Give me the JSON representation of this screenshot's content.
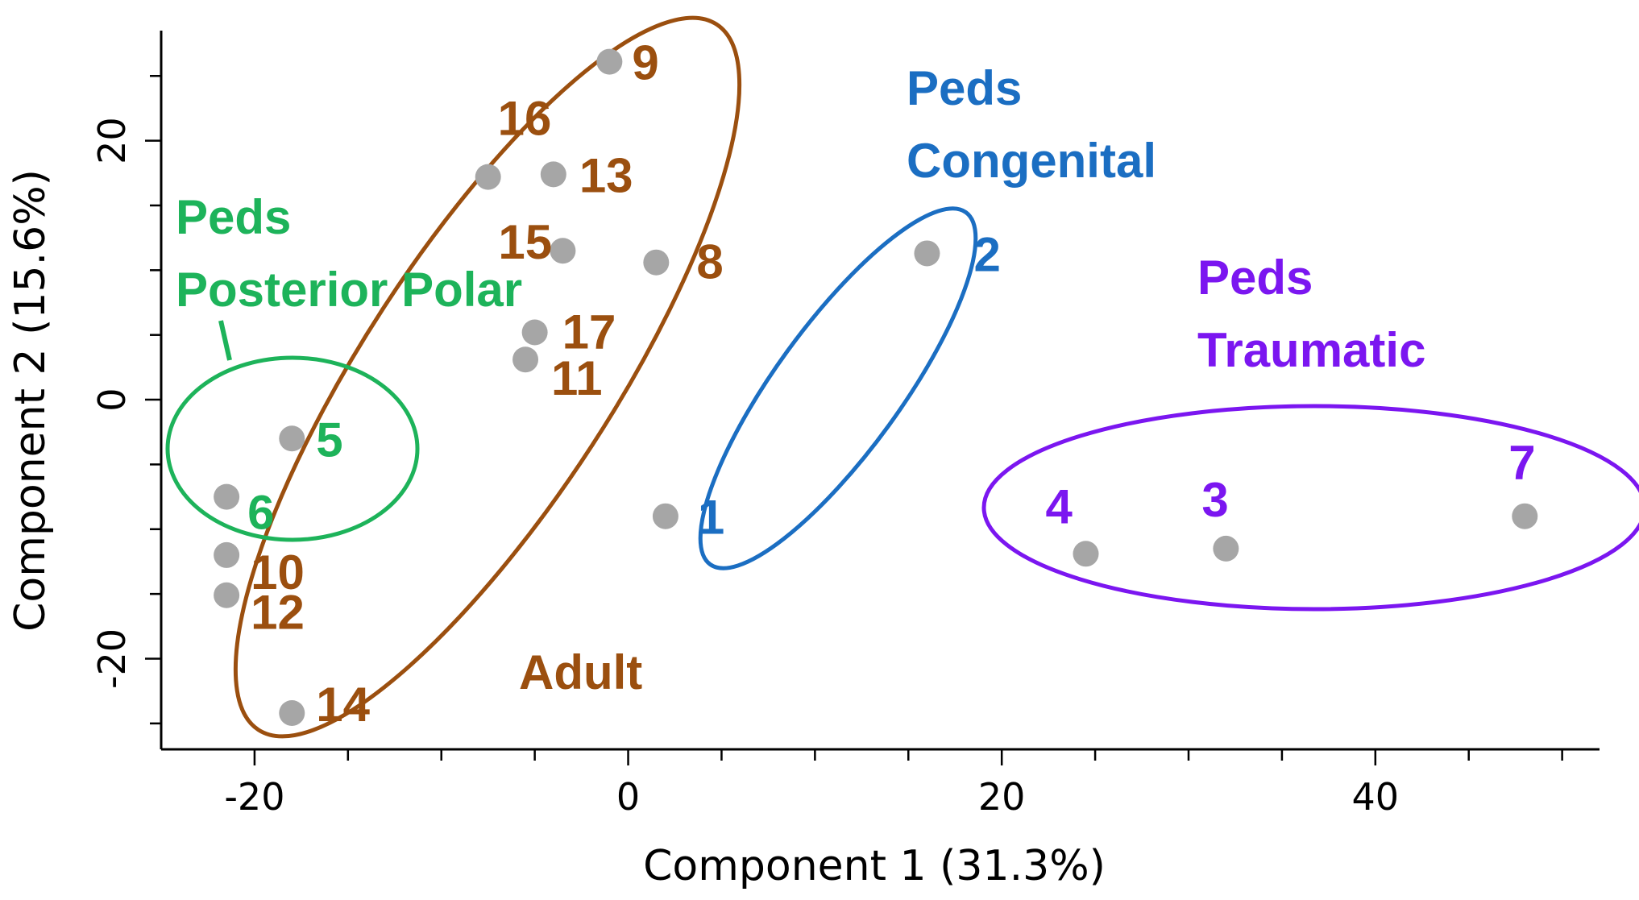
{
  "chart_data": {
    "type": "scatter",
    "xlabel": "Component 1 (31.3%)",
    "ylabel": "Component 2 (15.6%)",
    "xlim": [
      -25,
      52
    ],
    "ylim": [
      -27,
      28.5
    ],
    "xticks": [
      -20,
      0,
      20,
      40
    ],
    "yticks": [
      -20,
      0,
      20
    ],
    "grid": false,
    "points": [
      {
        "label": "1",
        "x": 2,
        "y": -9,
        "group": "Peds Congenital"
      },
      {
        "label": "2",
        "x": 16,
        "y": 11.3,
        "group": "Peds Congenital"
      },
      {
        "label": "3",
        "x": 32,
        "y": -11.5,
        "group": "Peds Traumatic"
      },
      {
        "label": "4",
        "x": 24.5,
        "y": -11.9,
        "group": "Peds Traumatic"
      },
      {
        "label": "5",
        "x": -18,
        "y": -3,
        "group": "Peds Posterior Polar"
      },
      {
        "label": "6",
        "x": -21.5,
        "y": -7.5,
        "group": "Peds Posterior Polar"
      },
      {
        "label": "7",
        "x": 48,
        "y": -9,
        "group": "Peds Traumatic"
      },
      {
        "label": "8",
        "x": 1.5,
        "y": 10.6,
        "group": "Adult"
      },
      {
        "label": "9",
        "x": -1,
        "y": 26.1,
        "group": "Adult"
      },
      {
        "label": "10",
        "x": -21.5,
        "y": -12,
        "group": "Adult"
      },
      {
        "label": "11",
        "x": -5.5,
        "y": 3.1,
        "group": "Adult"
      },
      {
        "label": "12",
        "x": -21.5,
        "y": -15.1,
        "group": "Adult"
      },
      {
        "label": "13",
        "x": -4,
        "y": 17.4,
        "group": "Adult"
      },
      {
        "label": "14",
        "x": -18,
        "y": -24.2,
        "group": "Adult"
      },
      {
        "label": "15",
        "x": -3.5,
        "y": 11.5,
        "group": "Adult"
      },
      {
        "label": "16",
        "x": -7.5,
        "y": 17.2,
        "group": "Adult"
      },
      {
        "label": "17",
        "x": -5,
        "y": 5.2,
        "group": "Adult"
      }
    ],
    "groups": [
      {
        "name": "Adult",
        "label_lines": [
          "Adult"
        ],
        "color": "#9B4F0F"
      },
      {
        "name": "Peds Congenital",
        "label_lines": [
          "Peds",
          "Congenital"
        ],
        "color": "#1B6EC2"
      },
      {
        "name": "Peds Posterior Polar",
        "label_lines": [
          "Peds",
          "Posterior Polar"
        ],
        "color": "#1DB35A"
      },
      {
        "name": "Peds Traumatic",
        "label_lines": [
          "Peds",
          "Traumatic"
        ],
        "color": "#7B16F0"
      }
    ],
    "marker_color": "#A6A6A6"
  }
}
